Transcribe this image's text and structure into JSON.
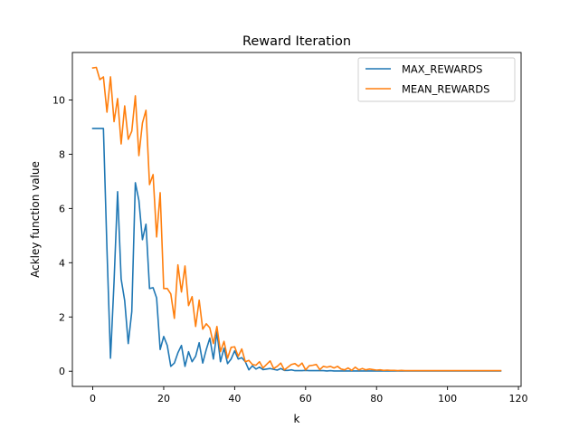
{
  "chart_data": {
    "type": "line",
    "title": "Reward Iteration",
    "xlabel": "k",
    "ylabel": "Ackley function value",
    "xlim": [
      -5.75,
      120.75
    ],
    "ylim": [
      -0.56,
      11.75
    ],
    "xticks": [
      0,
      20,
      40,
      60,
      80,
      100,
      120
    ],
    "yticks": [
      0,
      2,
      4,
      6,
      8,
      10
    ],
    "grid": false,
    "legend_position": "top-right",
    "x": [
      0,
      1,
      2,
      3,
      4,
      5,
      6,
      7,
      8,
      9,
      10,
      11,
      12,
      13,
      14,
      15,
      16,
      17,
      18,
      19,
      20,
      21,
      22,
      23,
      24,
      25,
      26,
      27,
      28,
      29,
      30,
      31,
      32,
      33,
      34,
      35,
      36,
      37,
      38,
      39,
      40,
      41,
      42,
      43,
      44,
      45,
      46,
      47,
      48,
      49,
      50,
      51,
      52,
      53,
      54,
      55,
      56,
      57,
      58,
      59,
      60,
      61,
      62,
      63,
      64,
      65,
      66,
      67,
      68,
      69,
      70,
      71,
      72,
      73,
      74,
      75,
      76,
      77,
      78,
      79,
      80,
      81,
      82,
      83,
      84,
      85,
      86,
      87,
      88,
      89,
      90,
      91,
      92,
      93,
      94,
      95,
      96,
      97,
      98,
      99,
      100,
      101,
      102,
      103,
      104,
      105,
      106,
      107,
      108,
      109,
      110,
      111,
      112,
      113,
      114,
      115
    ],
    "series": [
      {
        "name": "MAX_REWARDS",
        "color": "#1f77b4",
        "values": [
          8.95,
          8.95,
          8.95,
          8.95,
          4.5,
          0.48,
          3.3,
          6.62,
          3.4,
          2.6,
          1.02,
          2.2,
          6.95,
          6.3,
          4.85,
          5.42,
          3.05,
          3.08,
          2.7,
          0.8,
          1.28,
          0.95,
          0.18,
          0.3,
          0.68,
          0.95,
          0.18,
          0.72,
          0.35,
          0.55,
          1.05,
          0.3,
          0.8,
          1.22,
          0.45,
          1.45,
          0.35,
          0.85,
          0.28,
          0.45,
          0.75,
          0.45,
          0.5,
          0.35,
          0.05,
          0.2,
          0.08,
          0.15,
          0.06,
          0.08,
          0.1,
          0.07,
          0.04,
          0.1,
          0.03,
          0.03,
          0.05,
          0.02,
          0.02,
          0.02,
          0.03,
          0.02,
          0.02,
          0.02,
          0.02,
          0.02,
          0.01,
          0.02,
          0.01,
          0.01,
          0.01,
          0.01,
          0.01,
          0.01,
          0.01,
          0.01,
          0.01,
          0.01,
          0.01,
          0.01,
          0.01,
          0.01,
          0.01,
          0.01,
          0.01,
          0.01,
          0.01,
          0.01,
          0.01,
          0.01,
          0.01,
          0.01,
          0.01,
          0.01,
          0.01,
          0.01,
          0.01,
          0.01,
          0.01,
          0.01,
          0.01,
          0.01,
          0.01,
          0.01,
          0.01,
          0.01,
          0.01,
          0.01,
          0.01,
          0.01,
          0.01,
          0.01,
          0.01,
          0.01,
          0.01,
          0.01
        ]
      },
      {
        "name": "MEAN_REWARDS",
        "color": "#ff7f0e",
        "values": [
          11.18,
          11.2,
          10.75,
          10.85,
          9.55,
          10.85,
          9.2,
          10.05,
          8.38,
          9.78,
          8.55,
          8.85,
          10.15,
          7.95,
          9.15,
          9.62,
          6.88,
          7.25,
          4.95,
          6.58,
          3.05,
          3.05,
          2.85,
          1.95,
          3.92,
          2.92,
          3.88,
          2.42,
          2.75,
          1.65,
          2.62,
          1.55,
          1.75,
          1.6,
          1.02,
          1.65,
          0.72,
          1.1,
          0.48,
          0.88,
          0.9,
          0.55,
          0.82,
          0.35,
          0.4,
          0.25,
          0.22,
          0.35,
          0.12,
          0.25,
          0.38,
          0.1,
          0.18,
          0.3,
          0.05,
          0.15,
          0.25,
          0.28,
          0.18,
          0.3,
          0.05,
          0.2,
          0.22,
          0.25,
          0.06,
          0.18,
          0.15,
          0.18,
          0.12,
          0.18,
          0.08,
          0.05,
          0.12,
          0.03,
          0.15,
          0.05,
          0.1,
          0.05,
          0.08,
          0.06,
          0.04,
          0.05,
          0.03,
          0.04,
          0.03,
          0.03,
          0.02,
          0.03,
          0.02,
          0.02,
          0.02,
          0.02,
          0.02,
          0.02,
          0.02,
          0.02,
          0.02,
          0.02,
          0.02,
          0.02,
          0.02,
          0.02,
          0.02,
          0.02,
          0.02,
          0.02,
          0.02,
          0.02,
          0.02,
          0.02,
          0.02,
          0.02,
          0.02,
          0.02,
          0.02,
          0.02
        ]
      }
    ]
  }
}
